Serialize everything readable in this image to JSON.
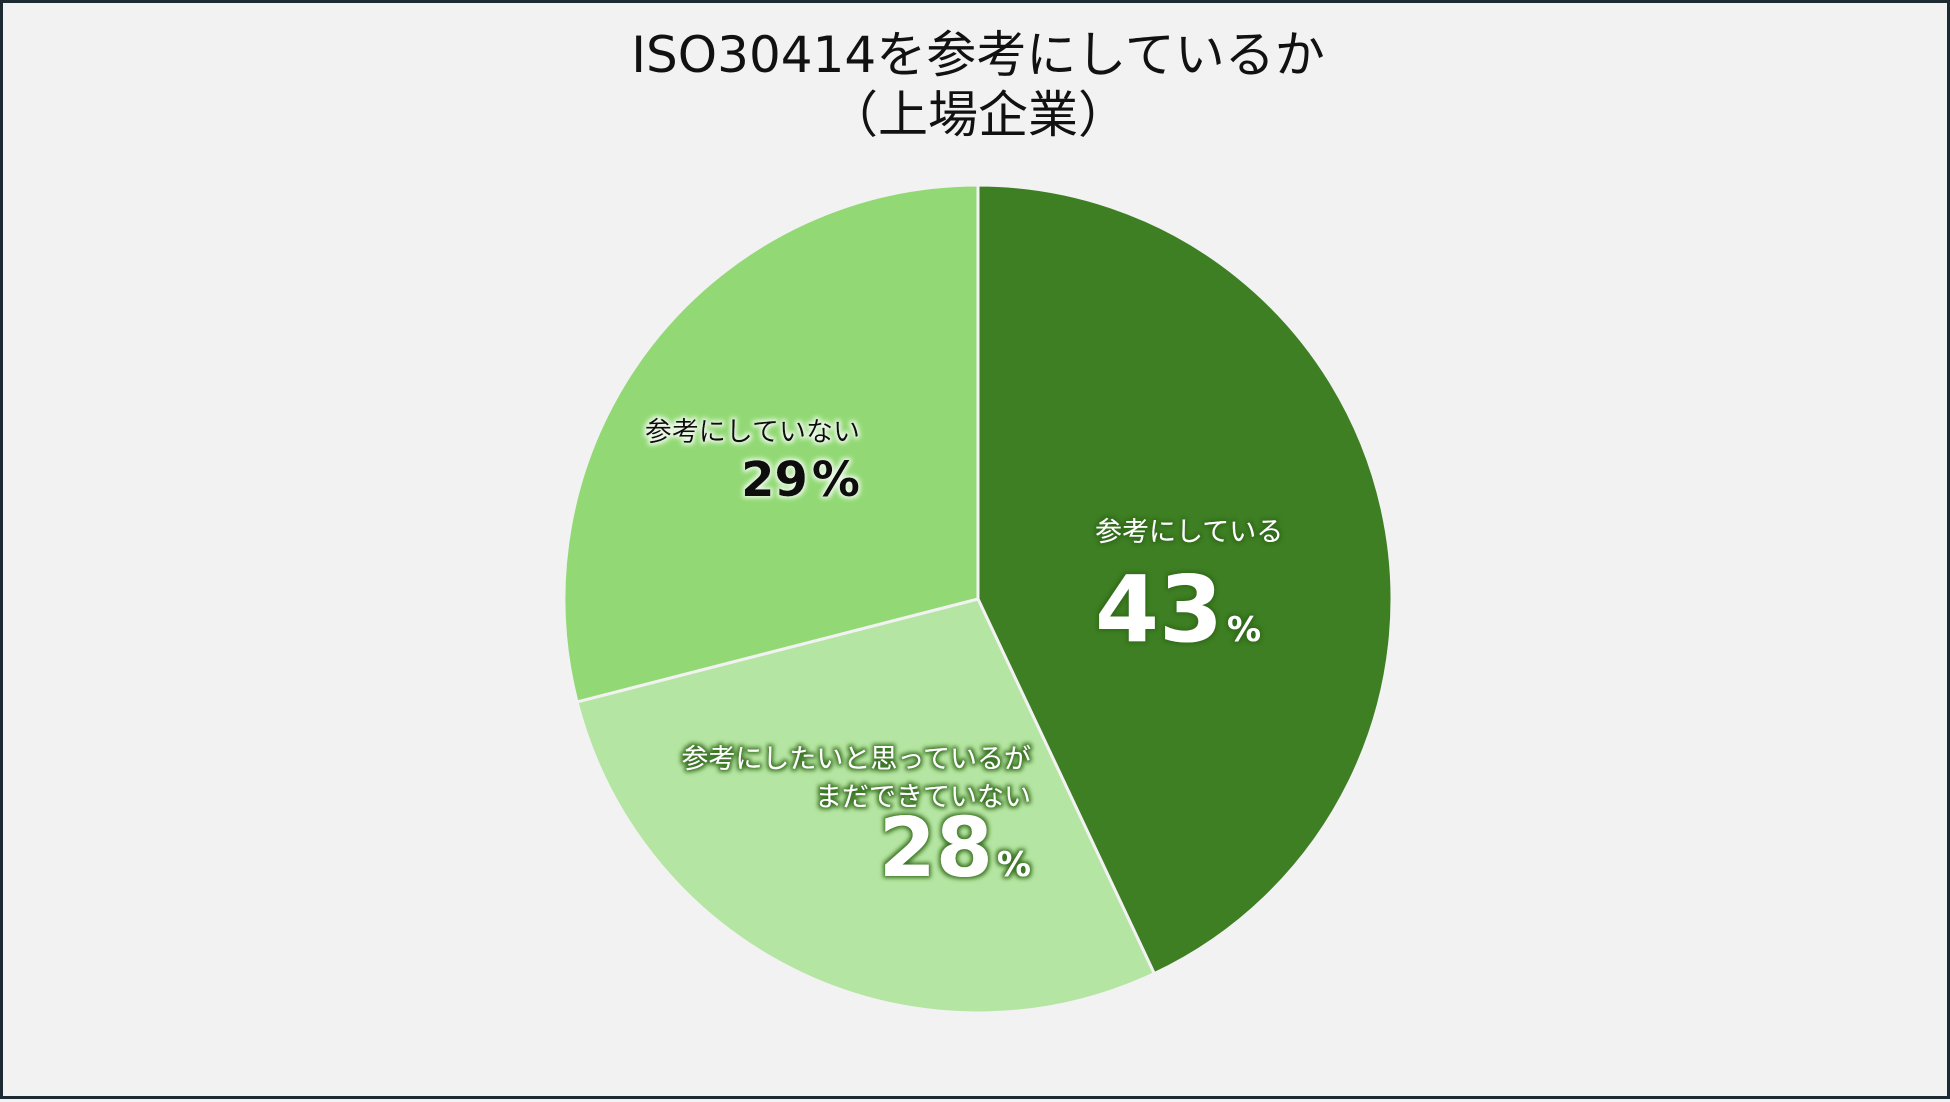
{
  "chart_data": {
    "type": "pie",
    "title": "ISO30414を参考にしているか",
    "subtitle": "（上場企業）",
    "slices": [
      {
        "label_lines": [
          "参考にしている"
        ],
        "value": 43,
        "value_text": "43",
        "unit": "%",
        "color": "#3e7f24",
        "text_color": "#ffffff"
      },
      {
        "label_lines": [
          "参考にしたいと思っているが",
          "まだできていない"
        ],
        "value": 28,
        "value_text": "28",
        "unit": "%",
        "color": "#b5e5a2",
        "text_color": "#ffffff"
      },
      {
        "label_lines": [
          "参考にしていない"
        ],
        "value": 29,
        "value_text": "29",
        "unit": "%",
        "color": "#92d975",
        "text_color": "#111111"
      }
    ],
    "start_angle": "12 o'clock",
    "direction": "clockwise",
    "legend": "none",
    "background": "#f2f2f2"
  }
}
